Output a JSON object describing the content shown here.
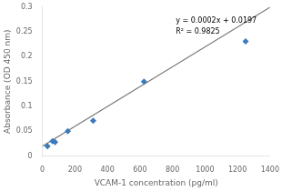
{
  "chart_data": {
    "type": "scatter",
    "xlabel": "VCAM-1 concentration (pg/ml)",
    "ylabel": "Absorbance (OD 450 nm)",
    "series": [
      {
        "type": "line",
        "color": "#777777",
        "line_style": "solid",
        "x": [
          0,
          1400
        ],
        "values": [
          0.0197,
          0.2997
        ]
      },
      {
        "type": "scatter",
        "color": "#3a7abf",
        "marker": "diamond",
        "x": [
          31.25,
          62.5,
          78.125,
          156.25,
          312.5,
          625,
          1250
        ],
        "values": [
          0.02,
          0.03,
          0.028,
          0.05,
          0.071,
          0.15,
          0.231
        ]
      }
    ],
    "annotations": [
      {
        "text": [
          "y = 0.0002x + 0.0197",
          "R² = 0.9825"
        ],
        "x": 820,
        "y": 0.262
      }
    ],
    "xlim": [
      0,
      1400
    ],
    "ylim": [
      0,
      0.3
    ],
    "xticks": [
      0,
      200,
      400,
      600,
      800,
      1000,
      1200,
      1400
    ],
    "yticks": [
      0,
      0.05,
      0.1,
      0.15,
      0.2,
      0.25,
      0.3
    ],
    "grid": false
  }
}
